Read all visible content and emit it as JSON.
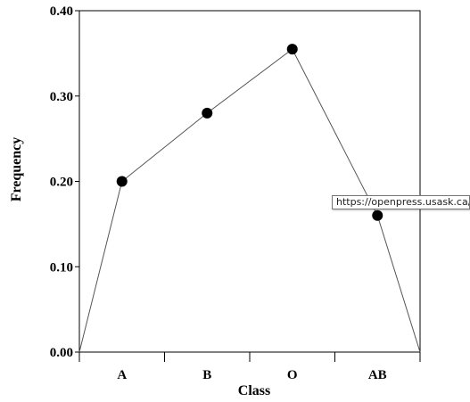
{
  "chart_data": {
    "type": "line",
    "categories": [
      "A",
      "B",
      "O",
      "AB"
    ],
    "values": [
      0.2,
      0.28,
      0.355,
      0.16
    ],
    "start_value": 0.0,
    "end_value": 0.0,
    "xlabel": "Class",
    "ylabel": "Frequency",
    "ylim": [
      0,
      0.4
    ],
    "yticks": [
      "0.00",
      "0.10",
      "0.20",
      "0.30",
      "0.40"
    ],
    "grid": false,
    "legend": "none",
    "line_color": "#555555",
    "marker_color": "#000000"
  },
  "tooltip": {
    "text": "https://openpress.usask.ca/a"
  }
}
